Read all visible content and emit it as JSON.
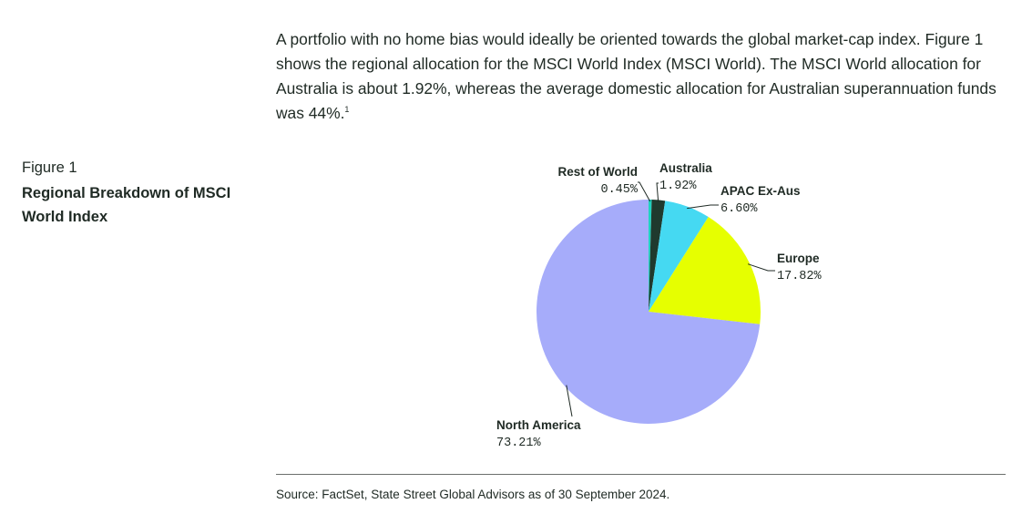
{
  "intro": {
    "text": "A portfolio with no home bias would ideally be oriented towards the global market-cap index. Figure 1 shows the regional allocation for the MSCI World Index (MSCI World). The MSCI World allocation for Australia is about 1.92%, whereas the average domestic allocation for Australian superannuation funds was 44%.",
    "footnote_marker": "1"
  },
  "figure": {
    "number": "Figure 1",
    "title": "Regional Breakdown of MSCI World Index"
  },
  "colors": {
    "rest_of_world": "#1fd3c0",
    "australia": "#1f3a2e",
    "apac_ex_aus": "#45d9f2",
    "europe": "#e6ff00",
    "north_america": "#a6acfa",
    "leader_line": "#1f2a24"
  },
  "chart_data": {
    "type": "pie",
    "title": "",
    "labels": [
      "Rest of World",
      "Australia",
      "APAC Ex-Aus",
      "Europe",
      "North America"
    ],
    "values": [
      0.45,
      1.92,
      6.6,
      17.82,
      73.21
    ],
    "value_labels": [
      "0.45%",
      "1.92%",
      "6.60%",
      "17.82%",
      "73.21%"
    ],
    "start": "12 o'clock",
    "direction": "clockwise",
    "legend": "none"
  },
  "source": "Source: FactSet, State Street Global Advisors as of 30 September 2024."
}
